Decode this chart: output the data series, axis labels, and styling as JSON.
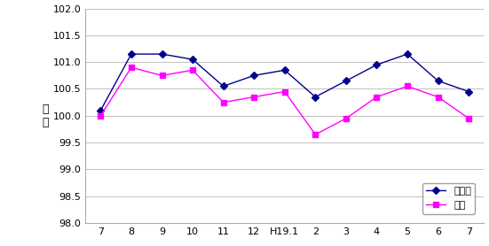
{
  "x_labels": [
    "7",
    "8",
    "9",
    "10",
    "11",
    "12",
    "H19.1",
    "2",
    "3",
    "4",
    "5",
    "6",
    "7"
  ],
  "mie_values": [
    100.1,
    101.15,
    101.15,
    101.05,
    100.55,
    100.75,
    100.85,
    100.35,
    100.65,
    100.95,
    101.15,
    100.65,
    100.45
  ],
  "tsu_values": [
    100.0,
    100.9,
    100.75,
    100.85,
    100.25,
    100.35,
    100.45,
    99.65,
    99.95,
    100.35,
    100.55,
    100.35,
    99.95
  ],
  "mie_color": "#00008B",
  "tsu_color": "#FF00FF",
  "mie_label": "三重県",
  "tsu_label": "津市",
  "ylabel": "指\n数",
  "ylim": [
    98.0,
    102.0
  ],
  "yticks": [
    98.0,
    98.5,
    99.0,
    99.5,
    100.0,
    100.5,
    101.0,
    101.5,
    102.0
  ],
  "bg_color": "#ffffff",
  "plot_bg": "#ffffff",
  "grid_color": "#c0c0c0",
  "marker_mie": "D",
  "marker_tsu": "s"
}
